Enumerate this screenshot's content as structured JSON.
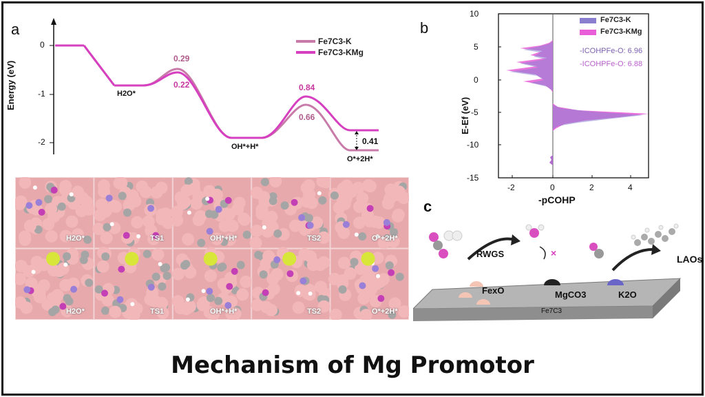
{
  "caption": "Mechanism of Mg Promotor",
  "panel_a": {
    "letter": "a",
    "ylabel": "Energy (eV)",
    "yticks": [
      "0",
      "-1",
      "-2"
    ],
    "legend": [
      {
        "name": "Fe7C3-K",
        "color": "#c87aa8"
      },
      {
        "name": "Fe7C3-KMg",
        "color": "#d63fbf"
      }
    ],
    "states": [
      "H2O*",
      "OH*+H*",
      "O*+2H*"
    ],
    "barriers": {
      "ts1_k": "0.29",
      "ts1_kmg": "0.22",
      "ts2_k": "0.66",
      "ts2_kmg": "0.84",
      "delta": "0.41"
    }
  },
  "panel_b": {
    "letter": "b",
    "ylabel": "E-Ef (eV)",
    "xlabel": "-pCOHP",
    "yticks": [
      "10",
      "5",
      "0",
      "-5",
      "-10",
      "-15"
    ],
    "xticks": [
      "-2",
      "0",
      "2",
      "4"
    ],
    "legend": [
      {
        "name": "Fe7C3-K",
        "color": "#8a7fcf"
      },
      {
        "name": "Fe7C3-KMg",
        "color": "#e85fd8"
      }
    ],
    "icohp": [
      {
        "label": "-ICOHPFe-O: 6.96",
        "color": "#7c5fb0"
      },
      {
        "label": "-ICOHPFe-O: 6.88",
        "color": "#b75fc9"
      }
    ]
  },
  "panel_c": {
    "letter": "c",
    "rwgs": "RWGS",
    "laos": "LAOs",
    "fexo": "FexO",
    "mgco3": "MgCO3",
    "k2o": "K2O",
    "substrate": "Fe7C3",
    "blocked": "×"
  },
  "slabs": {
    "row1": [
      "H2O*",
      "TS1",
      "OH*+H*",
      "TS2",
      "O*+2H*"
    ],
    "row2": [
      "H2O*",
      "TS1",
      "OH*+H*",
      "TS2",
      "O*+2H*"
    ]
  },
  "colors": {
    "k_line": "#c87aa8",
    "kmg_line": "#d63fbf",
    "k_val": "#b05a8c",
    "kmg_val": "#c8379f"
  }
}
